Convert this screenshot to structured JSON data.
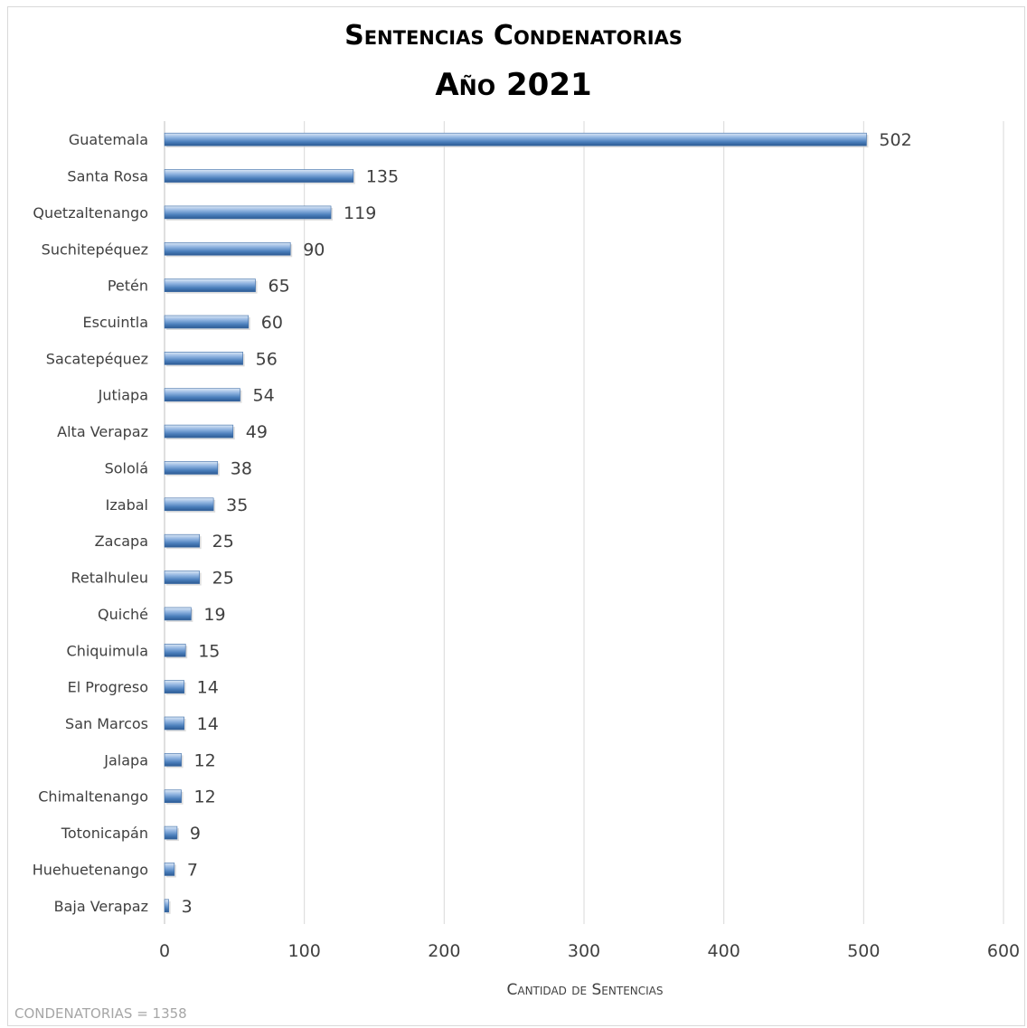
{
  "chart_data": {
    "type": "bar",
    "orientation": "horizontal",
    "title": "Sentencias Condenatorias",
    "subtitle": "Año 2021",
    "xlabel": "Cantidad de Sentencias",
    "ylabel": "",
    "xlim": [
      0,
      600
    ],
    "xticks": [
      "0",
      "100",
      "200",
      "300",
      "400",
      "500",
      "600"
    ],
    "grid": "vertical",
    "legend": "none",
    "bar_color": "#4a7ebb",
    "categories": [
      "Guatemala",
      "Santa Rosa",
      "Quetzaltenango",
      "Suchitepéquez",
      "Petén",
      "Escuintla",
      "Sacatepéquez",
      "Jutiapa",
      "Alta Verapaz",
      "Sololá",
      "Izabal",
      "Zacapa",
      "Retalhuleu",
      "Quiché",
      "Chiquimula",
      "El Progreso",
      "San Marcos",
      "Jalapa",
      "Chimaltenango",
      "Totonicapán",
      "Huehuetenango",
      "Baja Verapaz"
    ],
    "values": [
      502,
      135,
      119,
      90,
      65,
      60,
      56,
      54,
      49,
      38,
      35,
      25,
      25,
      19,
      15,
      14,
      14,
      12,
      12,
      9,
      7,
      3
    ],
    "footnote": "CONDENATORIAS = 1358"
  }
}
